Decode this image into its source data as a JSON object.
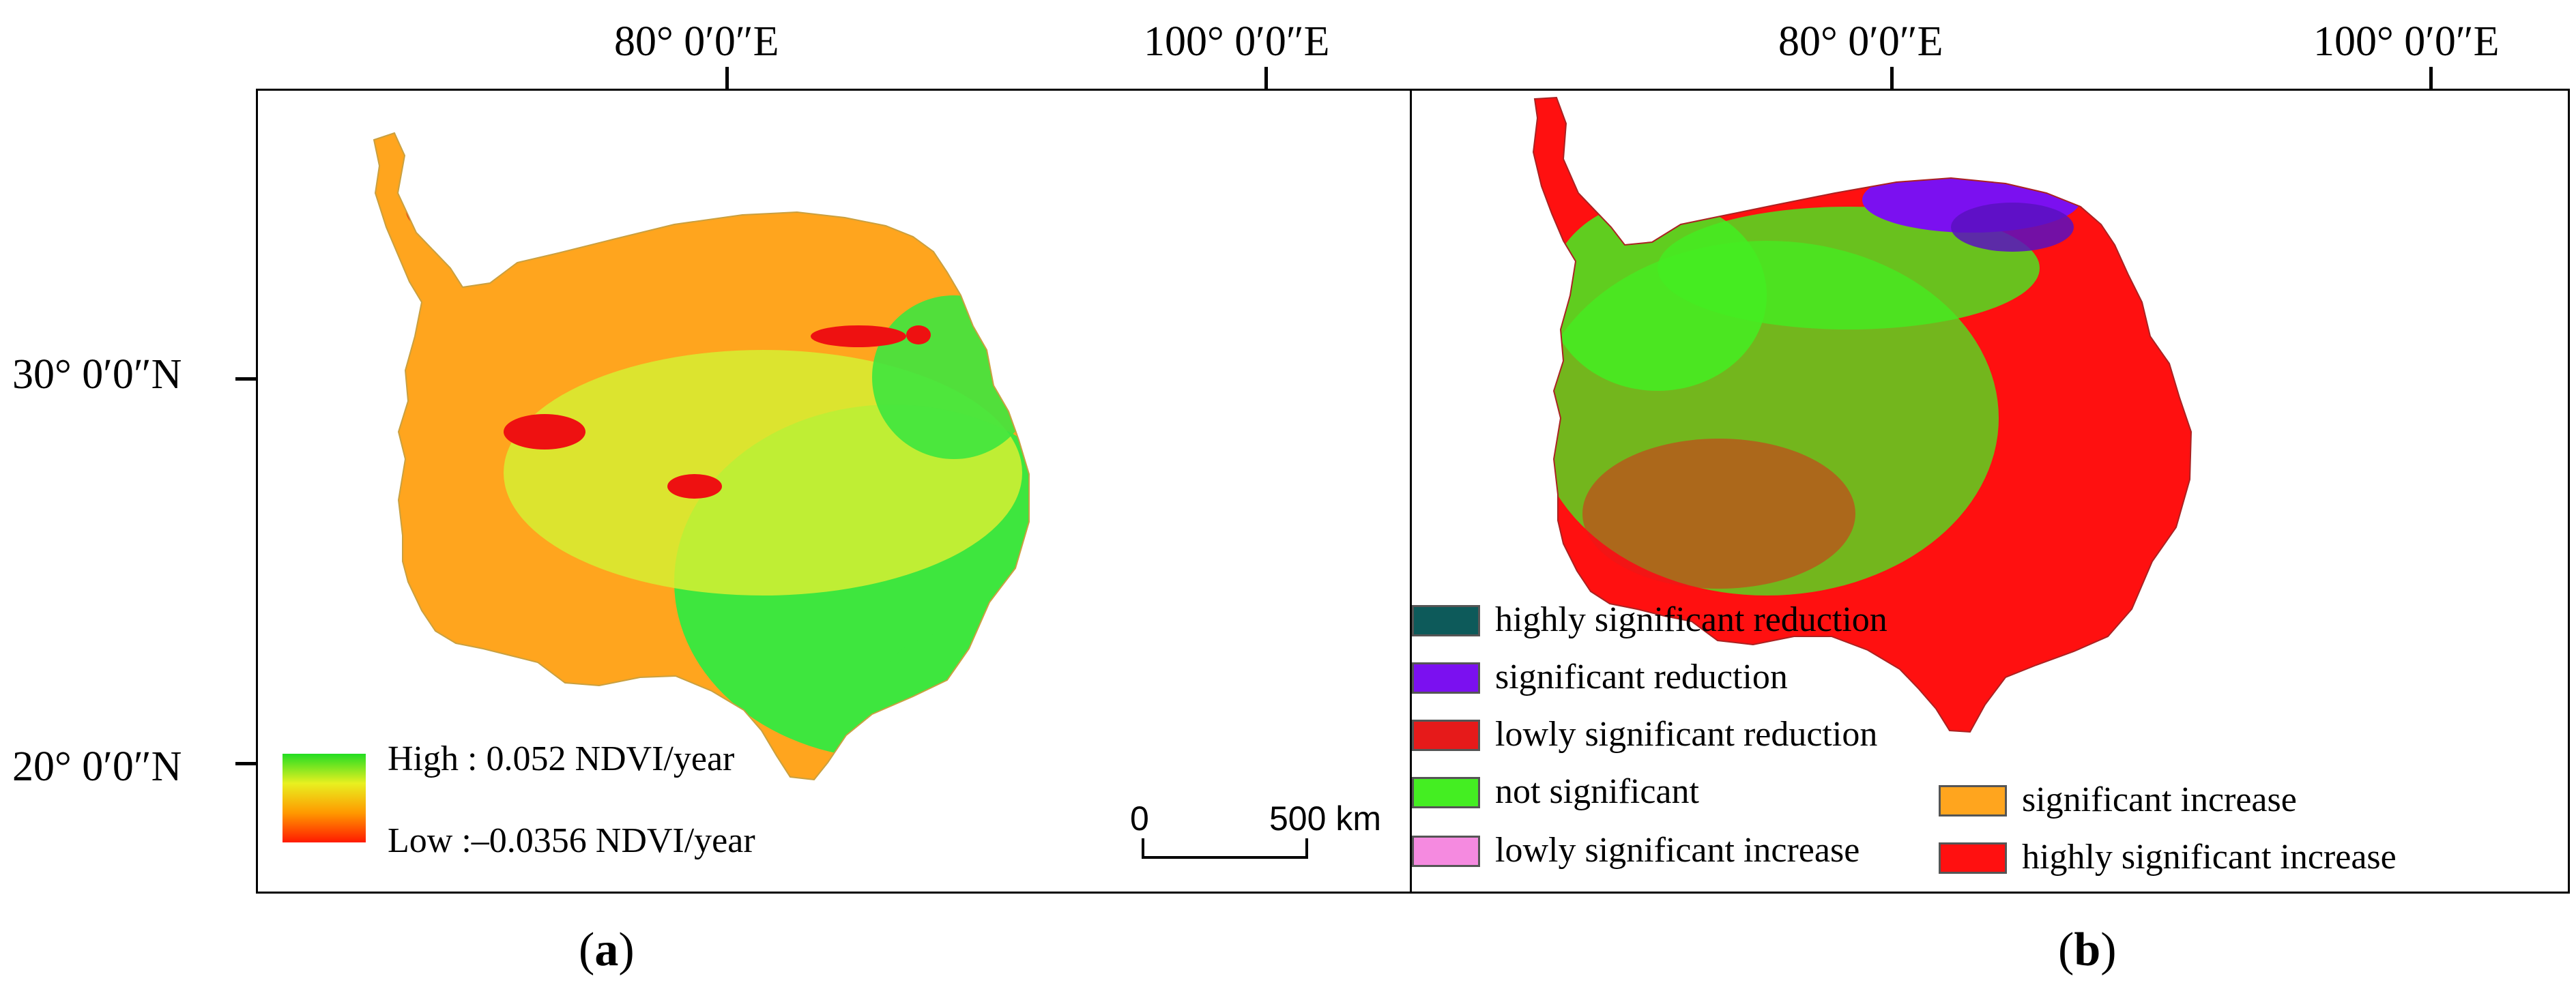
{
  "axes": {
    "longitude_labels": [
      "80° 0′0″E",
      "100° 0′0″E"
    ],
    "latitude_labels": [
      "30° 0′0″N",
      "20° 0′0″N"
    ]
  },
  "panel_a": {
    "caption_letter": "a",
    "legend": {
      "high_label": "High : 0.052 NDVI/year",
      "low_label": "Low :–0.0356 NDVI/year",
      "gradient_colors": [
        "#22dd22",
        "#e8f020",
        "#ff9900",
        "#ff1a00"
      ]
    },
    "scale_bar": {
      "start_label": "0",
      "end_label": "500 km"
    },
    "map_colors": {
      "base": "#ffa51e",
      "green": "#3ee63e",
      "yellow": "#d6ee33",
      "red": "#ee1111"
    }
  },
  "panel_b": {
    "caption_letter": "b",
    "legend": [
      {
        "label": "highly significant reduction",
        "color": "#0d5a5a"
      },
      {
        "label": "significant reduction",
        "color": "#7b10f0"
      },
      {
        "label": "lowly significant reduction",
        "color": "#e61a1a"
      },
      {
        "label": "not significant",
        "color": "#44ee22"
      },
      {
        "label": "lowly significant increase",
        "color": "#f58ae0"
      },
      {
        "label": "significant increase",
        "color": "#ffa51e"
      },
      {
        "label": "highly significant increase",
        "color": "#ff1010"
      }
    ]
  }
}
